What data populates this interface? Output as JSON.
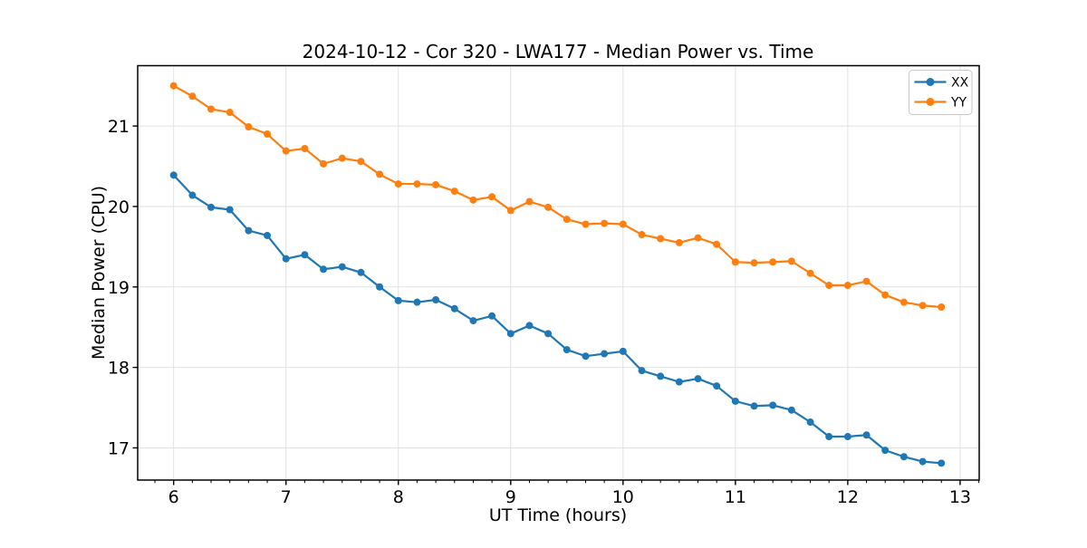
{
  "chart_data": {
    "type": "line",
    "title": "2024-10-12 - Cor 320 - LWA177 - Median Power vs. Time",
    "xlabel": "UT Time (hours)",
    "ylabel": "Median Power (CPU)",
    "xlim": [
      5.68,
      13.17
    ],
    "ylim": [
      16.6,
      21.75
    ],
    "xticks": [
      6,
      7,
      8,
      9,
      10,
      11,
      12,
      13
    ],
    "yticks": [
      17,
      18,
      19,
      20,
      21
    ],
    "x_minor_divisions": 6,
    "grid": true,
    "grid_color": "#e2e2e2",
    "background_color": "#ffffff",
    "legend_position": "upper right",
    "x": [
      6.0,
      6.167,
      6.333,
      6.5,
      6.667,
      6.833,
      7.0,
      7.167,
      7.333,
      7.5,
      7.667,
      7.833,
      8.0,
      8.167,
      8.333,
      8.5,
      8.667,
      8.833,
      9.0,
      9.167,
      9.333,
      9.5,
      9.667,
      9.833,
      10.0,
      10.167,
      10.333,
      10.5,
      10.667,
      10.833,
      11.0,
      11.167,
      11.333,
      11.5,
      11.667,
      11.833,
      12.0,
      12.167,
      12.333,
      12.5,
      12.667,
      12.833
    ],
    "series": [
      {
        "name": "XX",
        "color": "#1f77b4",
        "marker": "circle",
        "values": [
          20.39,
          20.14,
          19.99,
          19.96,
          19.7,
          19.64,
          19.35,
          19.4,
          19.22,
          19.25,
          19.18,
          19.0,
          18.83,
          18.81,
          18.84,
          18.73,
          18.58,
          18.64,
          18.42,
          18.52,
          18.42,
          18.22,
          18.14,
          18.17,
          18.2,
          17.96,
          17.89,
          17.82,
          17.86,
          17.77,
          17.58,
          17.52,
          17.53,
          17.47,
          17.32,
          17.14,
          17.14,
          17.16,
          16.97,
          16.89,
          16.83,
          16.81
        ]
      },
      {
        "name": "YY",
        "color": "#ff7f0e",
        "marker": "circle",
        "values": [
          21.5,
          21.37,
          21.21,
          21.17,
          20.99,
          20.9,
          20.69,
          20.72,
          20.53,
          20.6,
          20.56,
          20.4,
          20.28,
          20.28,
          20.27,
          20.19,
          20.08,
          20.12,
          19.95,
          20.06,
          19.99,
          19.84,
          19.78,
          19.79,
          19.78,
          19.65,
          19.6,
          19.55,
          19.61,
          19.53,
          19.31,
          19.3,
          19.31,
          19.32,
          19.17,
          19.02,
          19.02,
          19.07,
          18.9,
          18.81,
          18.77,
          18.75
        ]
      }
    ]
  }
}
